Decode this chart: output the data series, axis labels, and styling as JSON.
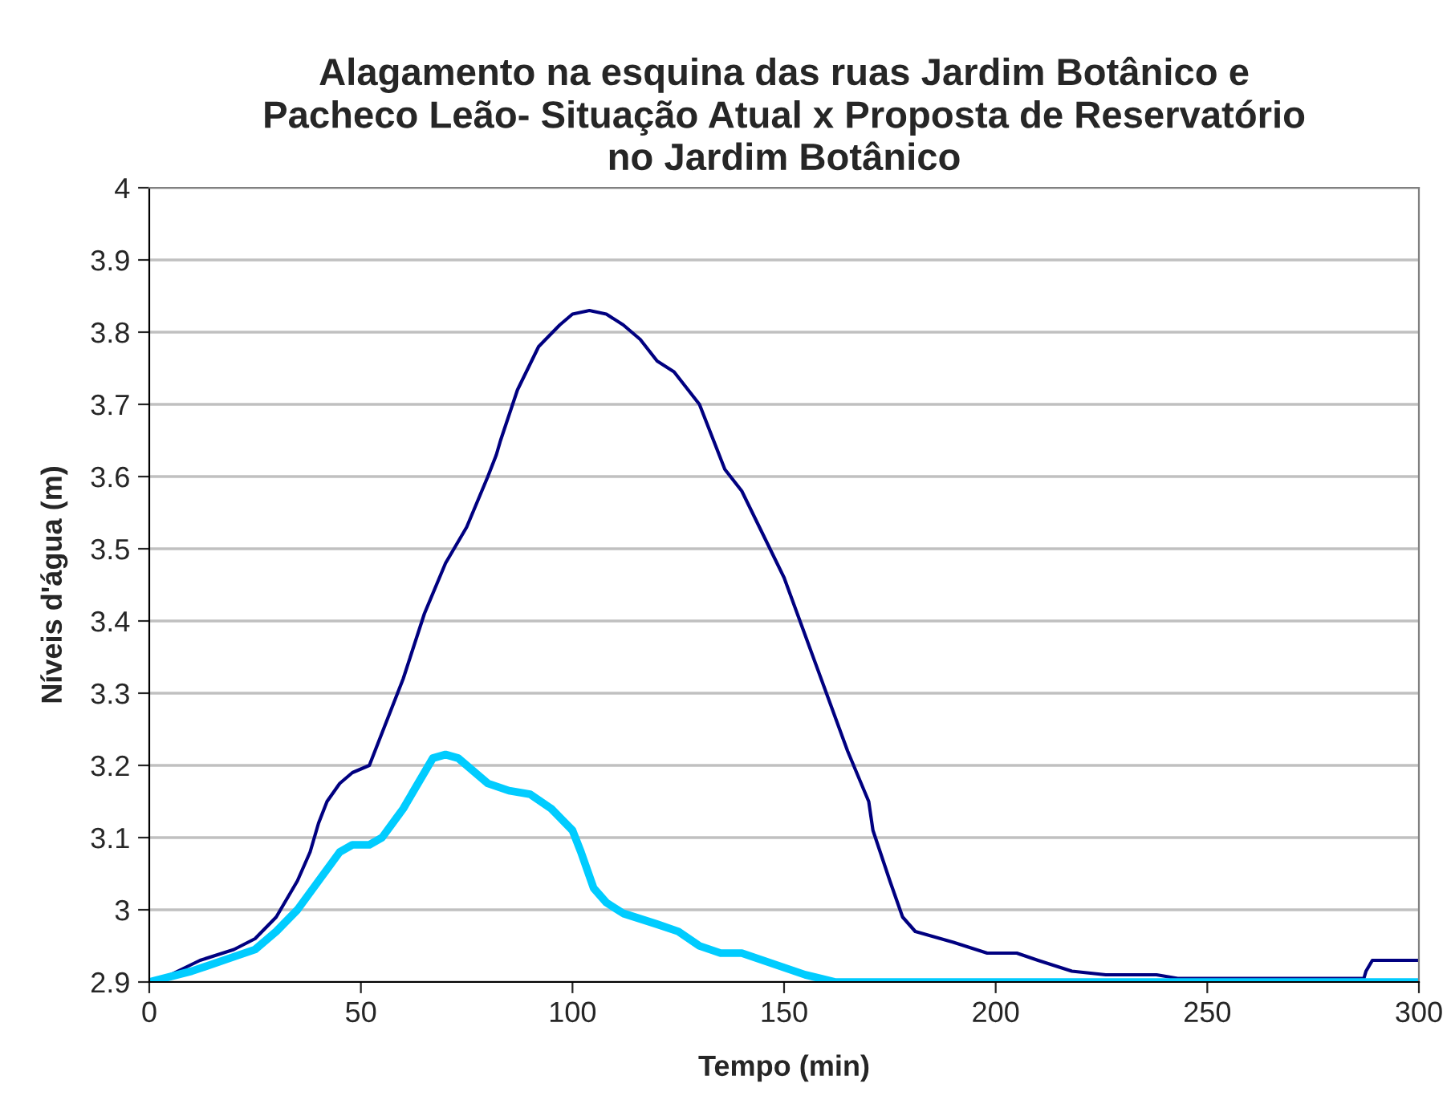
{
  "chart_data": {
    "type": "line",
    "title": "Alagamento na esquina das ruas Jardim Botânico e\nPacheco Leão- Situação Atual x Proposta de Reservatório\nno Jardim Botânico",
    "xlabel": "Tempo (min)",
    "ylabel": "Níveis d'água (m)",
    "xlim": [
      0,
      300
    ],
    "xticks": [
      0,
      50,
      100,
      150,
      200,
      250,
      300
    ],
    "ylim": [
      2.9,
      4
    ],
    "yticks": [
      {
        "value": 2.9,
        "label": "2.9"
      },
      {
        "value": 3.0,
        "label": "3"
      },
      {
        "value": 3.1,
        "label": "3.1"
      },
      {
        "value": 3.2,
        "label": "3.2"
      },
      {
        "value": 3.3,
        "label": "3.3"
      },
      {
        "value": 3.4,
        "label": "3.4"
      },
      {
        "value": 3.5,
        "label": "3.5"
      },
      {
        "value": 3.6,
        "label": "3.6"
      },
      {
        "value": 3.7,
        "label": "3.7"
      },
      {
        "value": 3.8,
        "label": "3.8"
      },
      {
        "value": 3.9,
        "label": "3.9"
      },
      {
        "value": 4.0,
        "label": "4"
      }
    ],
    "grid": "y",
    "legend": false,
    "marker": "none",
    "line_style": "solid",
    "series": [
      {
        "color": "#000080",
        "x": [
          0,
          5,
          12,
          20,
          25,
          30,
          35,
          38,
          40,
          42,
          45,
          48,
          52,
          54,
          60,
          65,
          70,
          75,
          80,
          82,
          83,
          87,
          92,
          97,
          100,
          104,
          108,
          112,
          116,
          120,
          124,
          130,
          136,
          140,
          145,
          150,
          155,
          160,
          165,
          170,
          171,
          175,
          178,
          181,
          190,
          198,
          205,
          210,
          218,
          226,
          238,
          243,
          250,
          287,
          287.5,
          289,
          300
        ],
        "values": [
          2.9,
          2.91,
          2.93,
          2.945,
          2.96,
          2.99,
          3.04,
          3.08,
          3.12,
          3.15,
          3.175,
          3.19,
          3.2,
          3.23,
          3.32,
          3.41,
          3.48,
          3.53,
          3.6,
          3.63,
          3.65,
          3.72,
          3.78,
          3.81,
          3.825,
          3.83,
          3.825,
          3.81,
          3.79,
          3.76,
          3.745,
          3.7,
          3.61,
          3.58,
          3.52,
          3.46,
          3.38,
          3.3,
          3.22,
          3.15,
          3.11,
          3.04,
          2.99,
          2.97,
          2.955,
          2.94,
          2.94,
          2.93,
          2.915,
          2.91,
          2.91,
          2.905,
          2.905,
          2.905,
          2.915,
          2.93,
          2.93
        ]
      },
      {
        "color": "#00ccff",
        "x": [
          0,
          10,
          20,
          25,
          30,
          35,
          40,
          45,
          48,
          52,
          55,
          60,
          65,
          67,
          70,
          73,
          77,
          80,
          85,
          90,
          95,
          100,
          102,
          105,
          108,
          112,
          120,
          125,
          130,
          135,
          140,
          145,
          150,
          155,
          162,
          300
        ],
        "values": [
          2.9,
          2.915,
          2.935,
          2.945,
          2.97,
          3.0,
          3.04,
          3.08,
          3.09,
          3.09,
          3.1,
          3.14,
          3.19,
          3.21,
          3.215,
          3.21,
          3.19,
          3.175,
          3.165,
          3.16,
          3.14,
          3.11,
          3.08,
          3.03,
          3.01,
          2.995,
          2.98,
          2.97,
          2.95,
          2.94,
          2.94,
          2.93,
          2.92,
          2.91,
          2.9,
          2.9
        ]
      }
    ]
  }
}
